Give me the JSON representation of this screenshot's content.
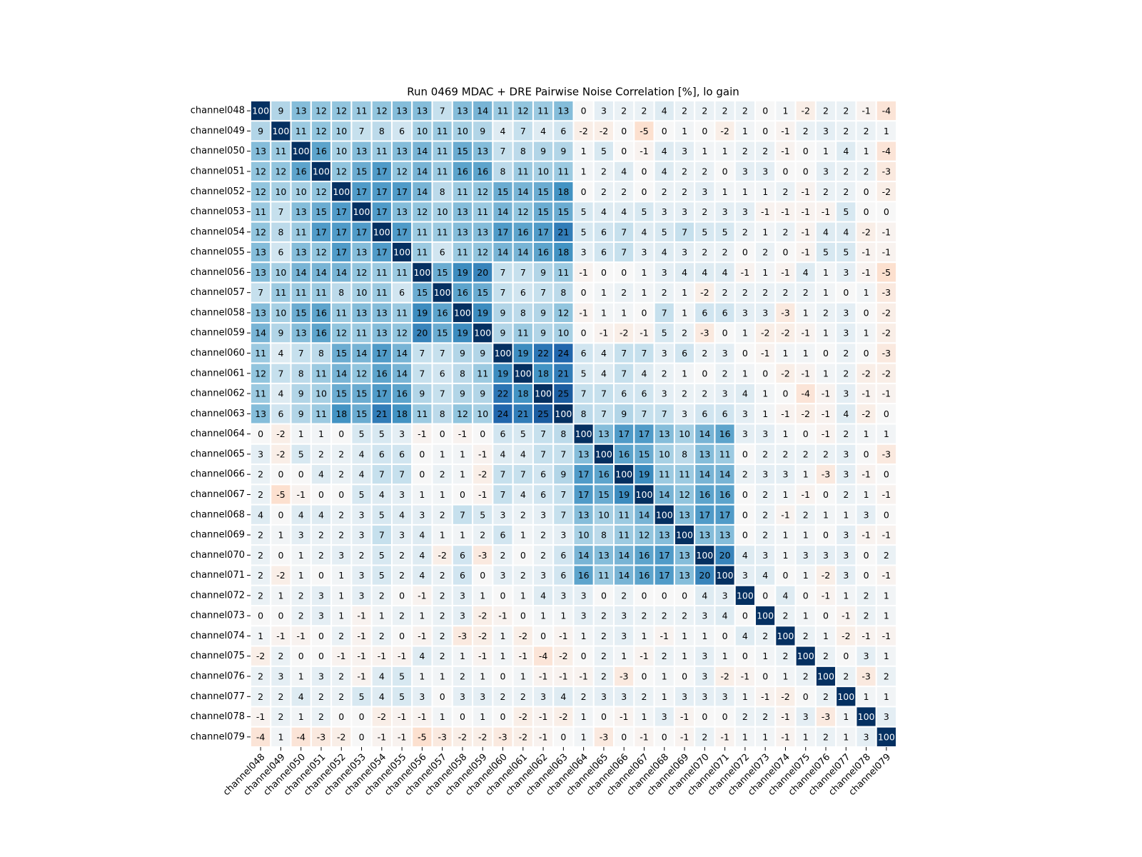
{
  "chart_data": {
    "type": "heatmap",
    "title": "Run 0469 MDAC + DRE Pairwise Noise Correlation [%], lo gain",
    "xcategories": [
      "channel048",
      "channel049",
      "channel050",
      "channel051",
      "channel052",
      "channel053",
      "channel054",
      "channel055",
      "channel056",
      "channel057",
      "channel058",
      "channel059",
      "channel060",
      "channel061",
      "channel062",
      "channel063",
      "channel064",
      "channel065",
      "channel066",
      "channel067",
      "channel068",
      "channel069",
      "channel070",
      "channel071",
      "channel072",
      "channel073",
      "channel074",
      "channel075",
      "channel076",
      "channel077",
      "channel078",
      "channel079"
    ],
    "ycategories": [
      "channel048",
      "channel049",
      "channel050",
      "channel051",
      "channel052",
      "channel053",
      "channel054",
      "channel055",
      "channel056",
      "channel057",
      "channel058",
      "channel059",
      "channel060",
      "channel061",
      "channel062",
      "channel063",
      "channel064",
      "channel065",
      "channel066",
      "channel067",
      "channel068",
      "channel069",
      "channel070",
      "channel071",
      "channel072",
      "channel073",
      "channel074",
      "channel075",
      "channel076",
      "channel077",
      "channel078",
      "channel079"
    ],
    "values": [
      [
        100,
        9,
        13,
        12,
        12,
        11,
        12,
        13,
        13,
        7,
        13,
        14,
        11,
        12,
        11,
        13,
        0,
        3,
        2,
        2,
        4,
        2,
        2,
        2,
        2,
        0,
        1,
        -2,
        2,
        2,
        -1,
        -4
      ],
      [
        9,
        100,
        11,
        12,
        10,
        7,
        8,
        6,
        10,
        11,
        10,
        9,
        4,
        7,
        4,
        6,
        -2,
        -2,
        0,
        -5,
        0,
        1,
        0,
        -2,
        1,
        0,
        -1,
        2,
        3,
        2,
        2,
        1
      ],
      [
        13,
        11,
        100,
        16,
        10,
        13,
        11,
        13,
        14,
        11,
        15,
        13,
        7,
        8,
        9,
        9,
        1,
        5,
        0,
        -1,
        4,
        3,
        1,
        1,
        2,
        2,
        -1,
        0,
        1,
        4,
        1,
        -4
      ],
      [
        12,
        12,
        16,
        100,
        12,
        15,
        17,
        12,
        14,
        11,
        16,
        16,
        8,
        11,
        10,
        11,
        1,
        2,
        4,
        0,
        4,
        2,
        2,
        0,
        3,
        3,
        0,
        0,
        3,
        2,
        2,
        -3
      ],
      [
        12,
        10,
        10,
        12,
        100,
        17,
        17,
        17,
        14,
        8,
        11,
        12,
        15,
        14,
        15,
        18,
        0,
        2,
        2,
        0,
        2,
        2,
        3,
        1,
        1,
        1,
        2,
        -1,
        2,
        2,
        0,
        -2
      ],
      [
        11,
        7,
        13,
        15,
        17,
        100,
        17,
        13,
        12,
        10,
        13,
        11,
        14,
        12,
        15,
        15,
        5,
        4,
        4,
        5,
        3,
        3,
        2,
        3,
        3,
        -1,
        -1,
        -1,
        -1,
        5,
        0,
        0
      ],
      [
        12,
        8,
        11,
        17,
        17,
        17,
        100,
        17,
        11,
        11,
        13,
        13,
        17,
        16,
        17,
        21,
        5,
        6,
        7,
        4,
        5,
        7,
        5,
        5,
        2,
        1,
        2,
        -1,
        4,
        4,
        -2,
        -1
      ],
      [
        13,
        6,
        13,
        12,
        17,
        13,
        17,
        100,
        11,
        6,
        11,
        12,
        14,
        14,
        16,
        18,
        3,
        6,
        7,
        3,
        4,
        3,
        2,
        2,
        0,
        2,
        0,
        -1,
        5,
        5,
        -1,
        -1
      ],
      [
        13,
        10,
        14,
        14,
        14,
        12,
        11,
        11,
        100,
        15,
        19,
        20,
        7,
        7,
        9,
        11,
        -1,
        0,
        0,
        1,
        3,
        4,
        4,
        4,
        -1,
        1,
        -1,
        4,
        1,
        3,
        -1,
        -5
      ],
      [
        7,
        11,
        11,
        11,
        8,
        10,
        11,
        6,
        15,
        100,
        16,
        15,
        7,
        6,
        7,
        8,
        0,
        1,
        2,
        1,
        2,
        1,
        -2,
        2,
        2,
        2,
        2,
        2,
        1,
        0,
        1,
        -3
      ],
      [
        13,
        10,
        15,
        16,
        11,
        13,
        13,
        11,
        19,
        16,
        100,
        19,
        9,
        8,
        9,
        12,
        -1,
        1,
        1,
        0,
        7,
        1,
        6,
        6,
        3,
        3,
        -3,
        1,
        2,
        3,
        0,
        -2
      ],
      [
        14,
        9,
        13,
        16,
        12,
        11,
        13,
        12,
        20,
        15,
        19,
        100,
        9,
        11,
        9,
        10,
        0,
        -1,
        -2,
        -1,
        5,
        2,
        -3,
        0,
        1,
        -2,
        -2,
        -1,
        1,
        3,
        1,
        -2
      ],
      [
        11,
        4,
        7,
        8,
        15,
        14,
        17,
        14,
        7,
        7,
        9,
        9,
        100,
        19,
        22,
        24,
        6,
        4,
        7,
        7,
        3,
        6,
        2,
        3,
        0,
        -1,
        1,
        1,
        0,
        2,
        0,
        -3
      ],
      [
        12,
        7,
        8,
        11,
        14,
        12,
        16,
        14,
        7,
        6,
        8,
        11,
        19,
        100,
        18,
        21,
        5,
        4,
        7,
        4,
        2,
        1,
        0,
        2,
        1,
        0,
        -2,
        -1,
        1,
        2,
        -2,
        -2
      ],
      [
        11,
        4,
        9,
        10,
        15,
        15,
        17,
        16,
        9,
        7,
        9,
        9,
        22,
        18,
        100,
        25,
        7,
        7,
        6,
        6,
        3,
        2,
        2,
        3,
        4,
        1,
        0,
        -4,
        -1,
        3,
        -1,
        -1
      ],
      [
        13,
        6,
        9,
        11,
        18,
        15,
        21,
        18,
        11,
        8,
        12,
        10,
        24,
        21,
        25,
        100,
        8,
        7,
        9,
        7,
        7,
        3,
        6,
        6,
        3,
        1,
        -1,
        -2,
        -1,
        4,
        -2,
        0
      ],
      [
        0,
        -2,
        1,
        1,
        0,
        5,
        5,
        3,
        -1,
        0,
        -1,
        0,
        6,
        5,
        7,
        8,
        100,
        13,
        17,
        17,
        13,
        10,
        14,
        16,
        3,
        3,
        1,
        0,
        -1,
        2,
        1,
        1
      ],
      [
        3,
        -2,
        5,
        2,
        2,
        4,
        6,
        6,
        0,
        1,
        1,
        -1,
        4,
        4,
        7,
        7,
        13,
        100,
        16,
        15,
        10,
        8,
        13,
        11,
        0,
        2,
        2,
        2,
        2,
        3,
        0,
        -3
      ],
      [
        2,
        0,
        0,
        4,
        2,
        4,
        7,
        7,
        0,
        2,
        1,
        -2,
        7,
        7,
        6,
        9,
        17,
        16,
        100,
        19,
        11,
        11,
        14,
        14,
        2,
        3,
        3,
        1,
        -3,
        3,
        -1,
        0
      ],
      [
        2,
        -5,
        -1,
        0,
        0,
        5,
        4,
        3,
        1,
        1,
        0,
        -1,
        7,
        4,
        6,
        7,
        17,
        15,
        19,
        100,
        14,
        12,
        16,
        16,
        0,
        2,
        1,
        -1,
        0,
        2,
        1,
        -1
      ],
      [
        4,
        0,
        4,
        4,
        2,
        3,
        5,
        4,
        3,
        2,
        7,
        5,
        3,
        2,
        3,
        7,
        13,
        10,
        11,
        14,
        100,
        13,
        17,
        17,
        0,
        2,
        -1,
        2,
        1,
        1,
        3,
        0
      ],
      [
        2,
        1,
        3,
        2,
        2,
        3,
        7,
        3,
        4,
        1,
        1,
        2,
        6,
        1,
        2,
        3,
        10,
        8,
        11,
        12,
        13,
        100,
        13,
        13,
        0,
        2,
        1,
        1,
        0,
        3,
        -1,
        -1
      ],
      [
        2,
        0,
        1,
        2,
        3,
        2,
        5,
        2,
        4,
        -2,
        6,
        -3,
        2,
        0,
        2,
        6,
        14,
        13,
        14,
        16,
        17,
        13,
        100,
        20,
        4,
        3,
        1,
        3,
        3,
        3,
        0,
        2
      ],
      [
        2,
        -2,
        1,
        0,
        1,
        3,
        5,
        2,
        4,
        2,
        6,
        0,
        3,
        2,
        3,
        6,
        16,
        11,
        14,
        16,
        17,
        13,
        20,
        100,
        3,
        4,
        0,
        1,
        -2,
        3,
        0,
        -1
      ],
      [
        2,
        1,
        2,
        3,
        1,
        3,
        2,
        0,
        -1,
        2,
        3,
        1,
        0,
        1,
        4,
        3,
        3,
        0,
        2,
        0,
        0,
        0,
        4,
        3,
        100,
        0,
        4,
        0,
        -1,
        1,
        2,
        1
      ],
      [
        0,
        0,
        2,
        3,
        1,
        -1,
        1,
        2,
        1,
        2,
        3,
        -2,
        -1,
        0,
        1,
        1,
        3,
        2,
        3,
        2,
        2,
        2,
        3,
        4,
        0,
        100,
        2,
        1,
        0,
        -1,
        2,
        1
      ],
      [
        1,
        -1,
        -1,
        0,
        2,
        -1,
        2,
        0,
        -1,
        2,
        -3,
        -2,
        1,
        -2,
        0,
        -1,
        1,
        2,
        3,
        1,
        -1,
        1,
        1,
        0,
        4,
        2,
        100,
        2,
        1,
        -2,
        -1,
        -1
      ],
      [
        -2,
        2,
        0,
        0,
        -1,
        -1,
        -1,
        -1,
        4,
        2,
        1,
        -1,
        1,
        -1,
        -4,
        -2,
        0,
        2,
        1,
        -1,
        2,
        1,
        3,
        1,
        0,
        1,
        2,
        100,
        2,
        0,
        3,
        1
      ],
      [
        2,
        3,
        1,
        3,
        2,
        -1,
        4,
        5,
        1,
        1,
        2,
        1,
        0,
        1,
        -1,
        -1,
        -1,
        2,
        -3,
        0,
        1,
        0,
        3,
        -2,
        -1,
        0,
        1,
        2,
        100,
        2,
        -3,
        2
      ],
      [
        2,
        2,
        4,
        2,
        2,
        5,
        4,
        5,
        3,
        0,
        3,
        3,
        2,
        2,
        3,
        4,
        2,
        3,
        3,
        2,
        1,
        3,
        3,
        3,
        1,
        -1,
        -2,
        0,
        2,
        100,
        1,
        1
      ],
      [
        -1,
        2,
        1,
        2,
        0,
        0,
        -2,
        -1,
        -1,
        1,
        0,
        1,
        0,
        -2,
        -1,
        -2,
        1,
        0,
        -1,
        1,
        3,
        -1,
        0,
        0,
        2,
        2,
        -1,
        3,
        -3,
        1,
        100,
        3
      ],
      [
        -4,
        1,
        -4,
        -3,
        -2,
        0,
        -1,
        -1,
        -5,
        -3,
        -2,
        -2,
        -3,
        -2,
        -1,
        0,
        1,
        -3,
        0,
        -1,
        0,
        -1,
        2,
        -1,
        1,
        1,
        -1,
        1,
        2,
        1,
        3,
        100
      ]
    ]
  }
}
